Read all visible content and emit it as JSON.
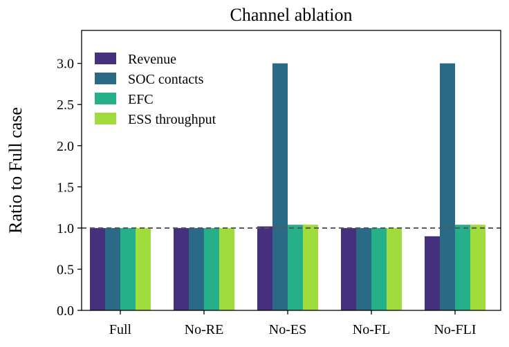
{
  "chart_data": {
    "type": "bar",
    "title": "Channel ablation",
    "xlabel": "",
    "ylabel": "Ratio to Full case",
    "categories": [
      "Full",
      "No-RE",
      "No-ES",
      "No-FL",
      "No-FLI"
    ],
    "series": [
      {
        "name": "Revenue",
        "color": "#45307e",
        "values": [
          1.0,
          1.0,
          1.02,
          1.0,
          0.9
        ]
      },
      {
        "name": "SOC contacts",
        "color": "#2b6a86",
        "values": [
          1.0,
          1.0,
          3.0,
          1.0,
          3.0
        ]
      },
      {
        "name": "EFC",
        "color": "#26b089",
        "values": [
          1.0,
          1.0,
          1.04,
          1.0,
          1.04
        ]
      },
      {
        "name": "ESS throughput",
        "color": "#a0dc3c",
        "values": [
          1.0,
          1.0,
          1.04,
          1.0,
          1.04
        ]
      }
    ],
    "ylim": [
      0,
      3.4
    ],
    "yticks": [
      "0.0",
      "0.5",
      "1.0",
      "1.5",
      "2.0",
      "2.5",
      "3.0"
    ],
    "reference_line": {
      "y": 1.0,
      "style": "dashed",
      "color": "#555555"
    },
    "legend_position": "top-left",
    "grid": false
  }
}
